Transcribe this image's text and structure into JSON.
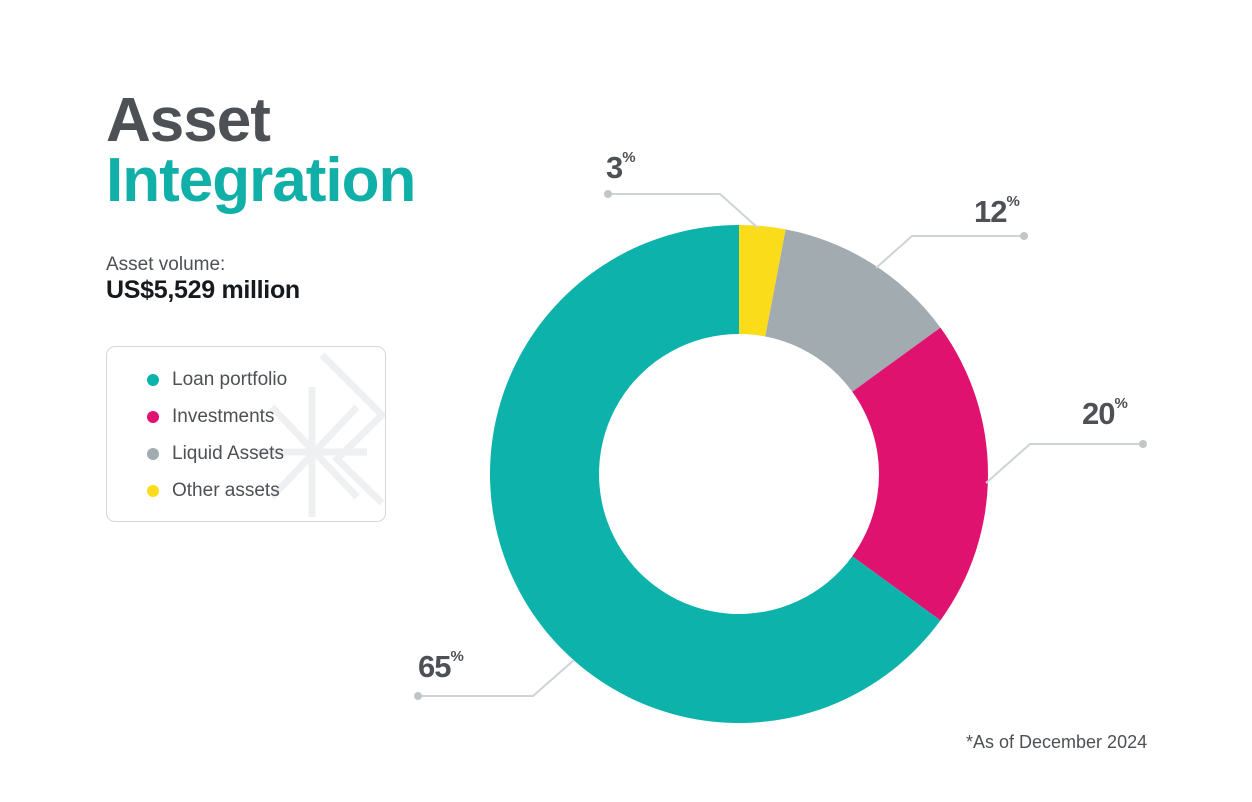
{
  "title": {
    "line1": "Asset",
    "line2": "Integration"
  },
  "asset_volume": {
    "label": "Asset volume:",
    "value": "US$5,529 million"
  },
  "legend": [
    {
      "label": "Loan portfolio",
      "color": "#0db2ab"
    },
    {
      "label": "Investments",
      "color": "#e01270"
    },
    {
      "label": "Liquid Assets",
      "color": "#a2abb0"
    },
    {
      "label": "Other assets",
      "color": "#fbdc1b"
    }
  ],
  "footnote": "*As of December 2024",
  "chart_data": {
    "type": "pie",
    "donut": true,
    "categories": [
      "Other assets",
      "Liquid Assets",
      "Investments",
      "Loan portfolio"
    ],
    "values": [
      3,
      12,
      20,
      65
    ],
    "labels": [
      "3",
      "12",
      "20",
      "65"
    ],
    "unit": "%",
    "colors": [
      "#fbdc1b",
      "#a2abb0",
      "#e01270",
      "#0db2ab"
    ],
    "start": "top, clockwise"
  }
}
